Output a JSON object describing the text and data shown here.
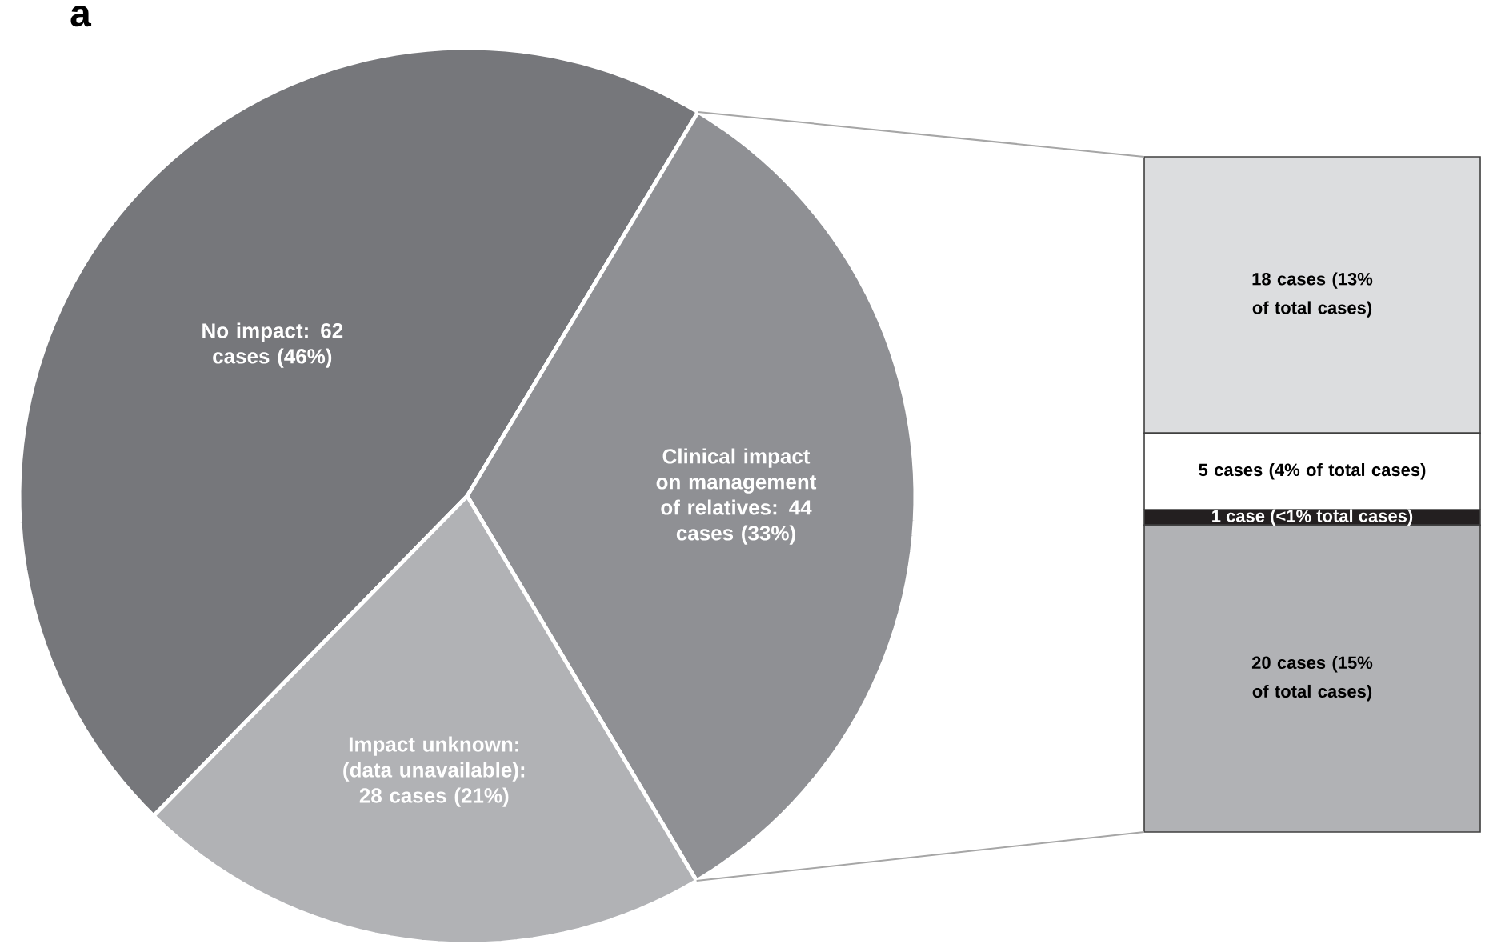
{
  "chart_data": [
    {
      "type": "pie",
      "title": "a",
      "categories": [
        "No impact: 62 cases (46%)",
        "Clinical impact on management of relatives: 44 cases (33%)",
        "Impact unknown: (data unavailable): 28 cases (21%)"
      ],
      "values": [
        62,
        44,
        28
      ],
      "colors": [
        "#76777b",
        "#8f9094",
        "#b1b2b5"
      ]
    },
    {
      "type": "bar",
      "stacked": true,
      "categories": [
        null
      ],
      "series": [
        {
          "color": "#b1b2b5",
          "values": [
            20
          ],
          "value_labels": [
            "20 cases (15% of total cases)"
          ]
        },
        {
          "color": "#231f20",
          "values": [
            1
          ],
          "value_labels": [
            "1 case (<1% total cases)"
          ]
        },
        {
          "color": "#ffffff",
          "values": [
            5
          ],
          "value_labels": [
            "5 cases (4% of total cases)"
          ]
        },
        {
          "color": "#dcdddf",
          "values": [
            18
          ],
          "value_labels": [
            "18 cases (13% of total cases)"
          ]
        }
      ]
    }
  ]
}
